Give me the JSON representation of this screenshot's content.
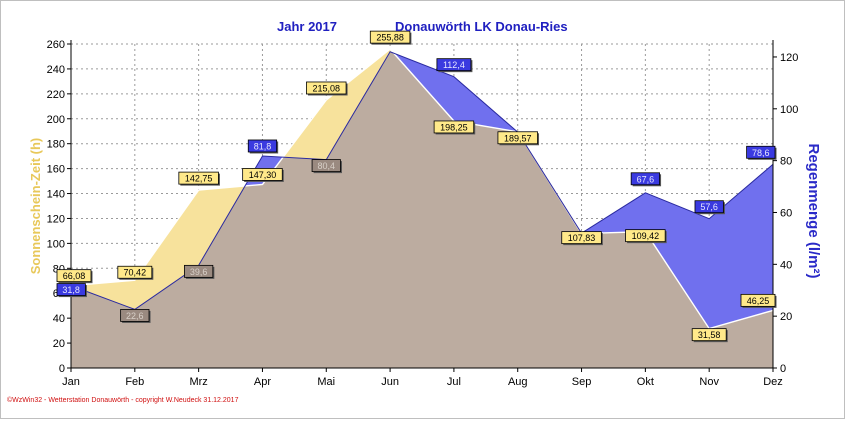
{
  "chart_data": {
    "type": "area",
    "title_year": "Jahr  2017",
    "title_location": "Donauwörth LK Donau-Ries",
    "xlabel": "",
    "categories": [
      "Jan",
      "Feb",
      "Mrz",
      "Apr",
      "Mai",
      "Jun",
      "Jul",
      "Aug",
      "Sep",
      "Okt",
      "Nov",
      "Dez"
    ],
    "left_axis": {
      "label": "Sonnenschein-Zeit  (h)",
      "ylim": [
        0,
        260
      ],
      "ticks": [
        "0",
        "20",
        "40",
        "60",
        "80",
        "100",
        "120",
        "140",
        "160",
        "180",
        "200",
        "220",
        "240",
        "260"
      ]
    },
    "right_axis": {
      "label": "Regenmenge  (l/m²)",
      "ylim": [
        0,
        125
      ],
      "ticks": [
        "0",
        "20",
        "40",
        "60",
        "80",
        "100",
        "120"
      ]
    },
    "series": [
      {
        "name": "Sonnenschein-Zeit",
        "axis": "left",
        "color": "#f7e29c",
        "label_color": "#ffe98a",
        "values": [
          66.08,
          70.42,
          142.75,
          147.3,
          215.08,
          255.88,
          198.25,
          189.57,
          107.83,
          109.42,
          31.58,
          46.25
        ],
        "labels": [
          "66,08",
          "70,42",
          "142,75",
          "147,30",
          "215,08",
          "255,88",
          "198,25",
          "189,57",
          "107,83",
          "109,42",
          "31,58",
          "46,25"
        ]
      },
      {
        "name": "Regenmenge",
        "axis": "right",
        "color": "#7070ee",
        "label_color": "#3a3ae0",
        "values": [
          31.8,
          22.6,
          39.6,
          81.8,
          80.4,
          122.0,
          112.4,
          91.0,
          52.0,
          67.6,
          57.6,
          78.6
        ],
        "labels": [
          "31,8",
          "22,6",
          "39,6",
          "81,8",
          "80,4",
          "",
          "112,4",
          "",
          "",
          "67,6",
          "57,6",
          "78,6"
        ]
      }
    ],
    "overlap_color": "#bcaca0",
    "grid": true,
    "grid_color": "#9a9a9a",
    "title_color": "#2020c0",
    "footer_color": "#d01010",
    "footer": "©WzWin32 - Wetterstation Donauwörth - copyright W.Neudeck 31.12.2017"
  }
}
